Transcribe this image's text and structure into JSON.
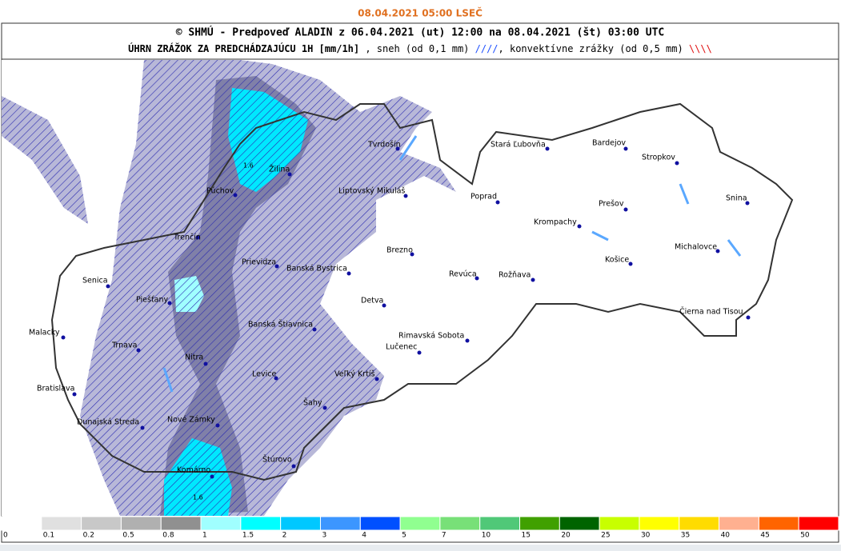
{
  "header": {
    "date": "08.04.2021 05:00 LSEČ"
  },
  "title": {
    "line1": "© SHMÚ - Predpoveď ALADIN z 06.04.2021 (ut) 12:00 na 08.04.2021 (št) 03:00 UTC",
    "line2_parts": [
      {
        "text": "ÚHRN ZRÁŽOK ZA PREDCHÁDZAJÚCU 1H [mm/1h]",
        "color": "#000000",
        "bold": true
      },
      {
        "text": " , sneh (od 0,1 mm) ",
        "color": "#000000",
        "bold": false
      },
      {
        "text": "////",
        "color": "#1e50ff",
        "bold": false
      },
      {
        "text": ", konvektívne zrážky (od 0,5 mm) ",
        "color": "#000000",
        "bold": false
      },
      {
        "text": "\\\\\\\\",
        "color": "#e01010",
        "bold": false
      }
    ]
  },
  "cities": [
    "Tvrdošín",
    "Stará Ľubovňa",
    "Bardejov",
    "Stropkov",
    "Žilina",
    "Púchov",
    "Liptovský Mikuláš",
    "Poprad",
    "Snina",
    "Prešov",
    "Krompachy",
    "Trenčín",
    "Michalovce",
    "Brezno",
    "Košice",
    "Prievidza",
    "Banská Bystrica",
    "Senica",
    "Revúca",
    "Rožňava",
    "Piešťany",
    "Detva",
    "Čierna nad Tisou",
    "Malacky",
    "Banská Štiavnica",
    "Rimavská Sobota",
    "Trnava",
    "Lučenec",
    "Nitra",
    "Levice",
    "Veľký Krtíš",
    "Bratislava",
    "Šahy",
    "Dunajská Streda",
    "Nové Zámky",
    "Štúrovo",
    "Komárno"
  ],
  "contour_labels": [
    "1.6",
    "1.6"
  ],
  "scale": {
    "labels": [
      0,
      0.1,
      0.2,
      0.5,
      0.8,
      1,
      1.5,
      2,
      3,
      4,
      5,
      7,
      10,
      15,
      20,
      25,
      30,
      35,
      40,
      45,
      50
    ],
    "colors": [
      "#ffffff",
      "#e0e0e0",
      "#c8c8c8",
      "#b0b0b0",
      "#909090",
      "#a0ffff",
      "#00ffff",
      "#00c8ff",
      "#3c96ff",
      "#0050ff",
      "#90ff90",
      "#78e078",
      "#50c878",
      "#40a000",
      "#006400",
      "#c8ff00",
      "#ffff00",
      "#ffdc00",
      "#ffb090",
      "#ff6400",
      "#ff0000"
    ]
  }
}
